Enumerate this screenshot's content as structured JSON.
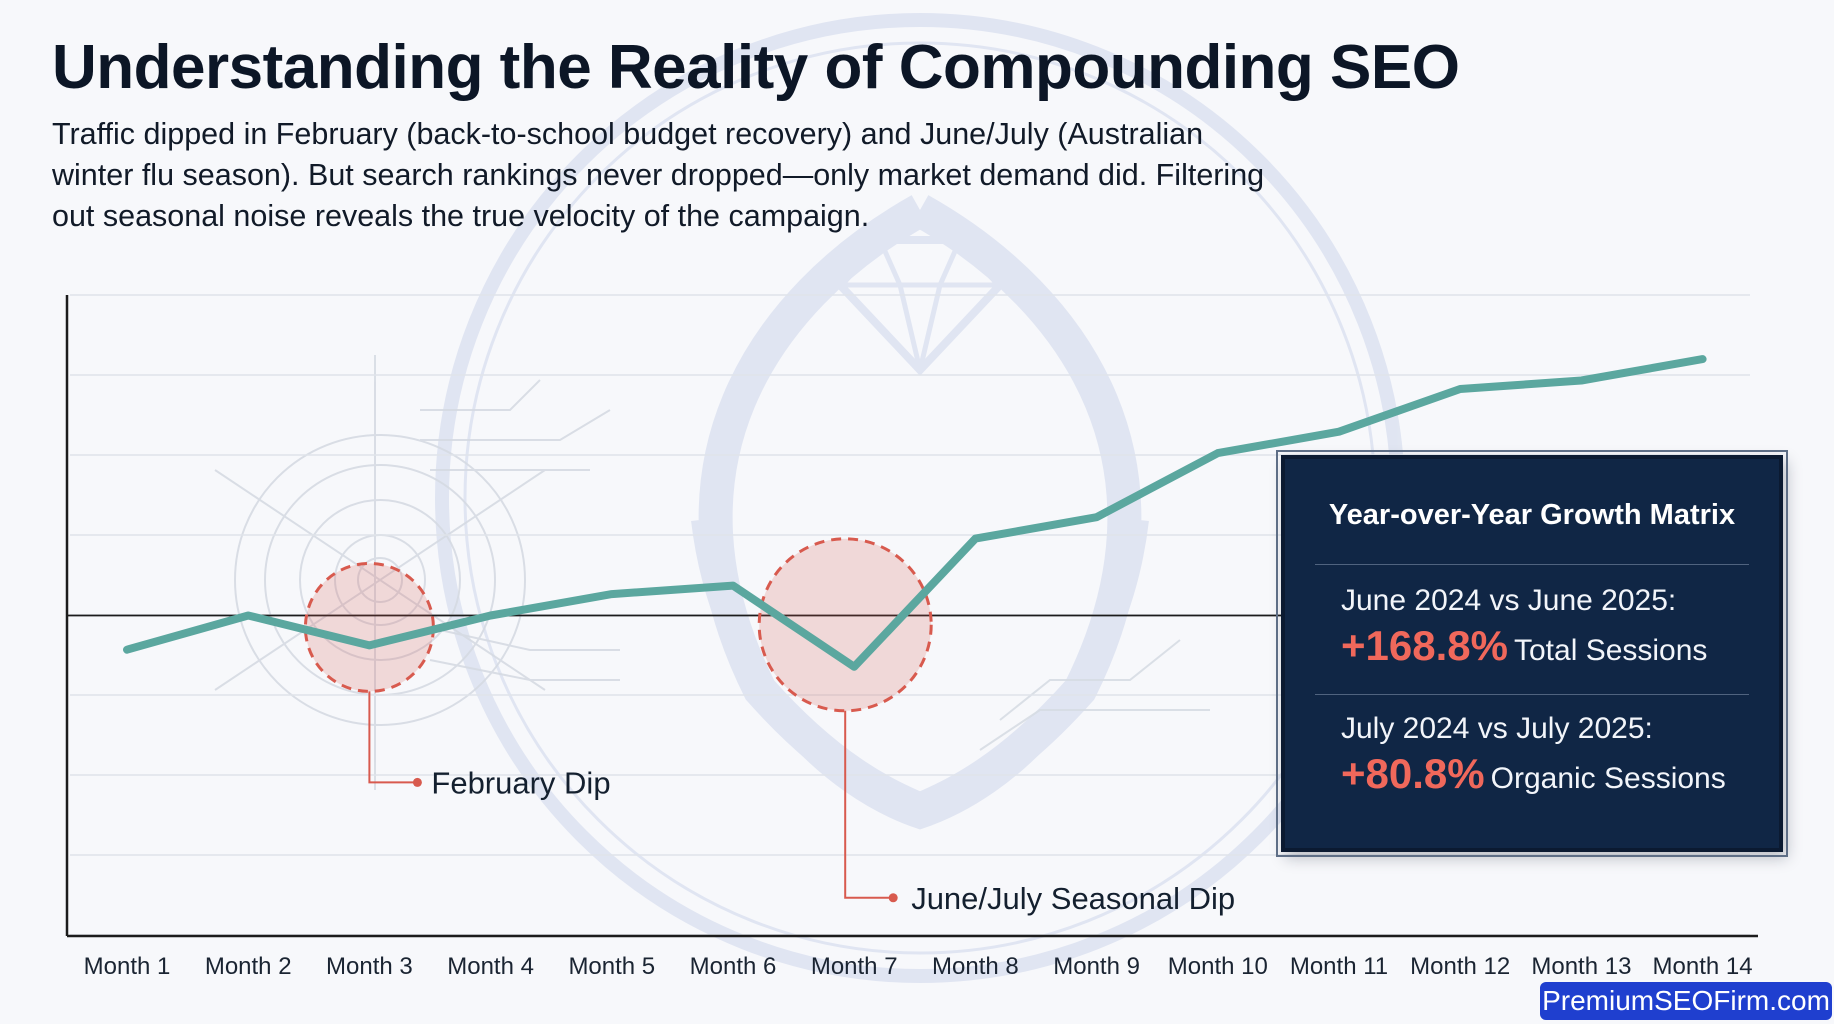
{
  "header": {
    "title": "Understanding the Reality of Compounding SEO",
    "subtitle": "Traffic dipped in February (back-to-school budget recovery) and June/July (Australian winter flu season). But search rankings never dropped—only market demand did. Filtering out seasonal noise reveals the true velocity of the campaign."
  },
  "chart_data": {
    "type": "line",
    "categories": [
      "Month 1",
      "Month 2",
      "Month 3",
      "Month 4",
      "Month 5",
      "Month 6",
      "Month 7",
      "Month 8",
      "Month 9",
      "Month 10",
      "Month 11",
      "Month 12",
      "Month 13",
      "Month 14"
    ],
    "values": [
      32,
      40,
      33,
      40,
      45,
      47,
      28,
      58,
      63,
      78,
      83,
      93,
      95,
      100
    ],
    "ylim": [
      -35,
      115
    ],
    "baseline": 40,
    "grid": true,
    "legend": "none",
    "line_color": "#5ba79f",
    "dip_color": "#d85a4e",
    "annotations": [
      {
        "label": "February Dip",
        "category_index": 2
      },
      {
        "label": "June/July Seasonal Dip",
        "category_index": 6
      }
    ]
  },
  "growth_matrix": {
    "title": "Year-over-Year Growth Matrix",
    "rows": [
      {
        "comparison": "June 2024 vs June 2025:",
        "value": "+168.8%",
        "metric": "Total Sessions"
      },
      {
        "comparison": "July 2024 vs July 2025:",
        "value": "+80.8%",
        "metric": "Organic Sessions"
      }
    ]
  },
  "brand": {
    "label": "PremiumSEOFirm.com"
  },
  "colors": {
    "panel": "#102645",
    "accent": "#f0685b",
    "line": "#5ba79f",
    "brand": "#1f3fcf"
  }
}
